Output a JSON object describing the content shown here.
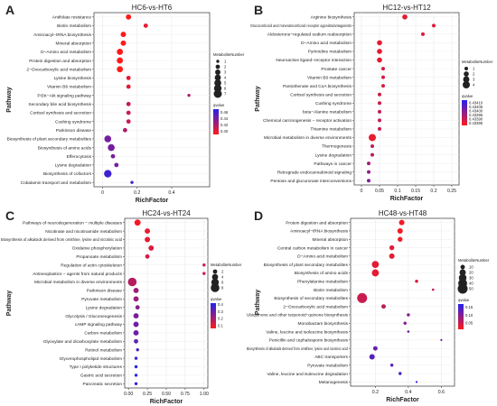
{
  "chart_data": [
    {
      "panel_letter": "A",
      "type": "scatter",
      "title": "HC6-vs-HT6",
      "xlabel": "RichFactor",
      "ylabel": "Pathway",
      "xlim": [
        -0.05,
        0.62
      ],
      "xticks": [
        0.0,
        0.2,
        0.4
      ],
      "size_legend": {
        "title": "MetaboliteNumber",
        "labels": [
          "1",
          "2",
          "3",
          "4",
          "5",
          "6",
          "7"
        ],
        "values": [
          1,
          2,
          3,
          4,
          5,
          6,
          7
        ]
      },
      "color_legend": {
        "title": "qvalue",
        "labels": [
          "0.46",
          "0.44",
          "0.42",
          "0.40"
        ],
        "values": [
          0.46,
          0.44,
          0.42,
          0.4
        ],
        "domain": [
          0.39,
          0.47
        ]
      },
      "colors": {
        "low": "#ff1a1a",
        "high": "#2222ee"
      },
      "categories": [
        "Antifolate resistance",
        "Biotin metabolism",
        "Aminoacyl−tRNA biosynthesis",
        "Mineral absorption",
        "D−Amino acid metabolism",
        "Protein digestion and absorption",
        "2−Oxocarboxylic acid metabolism",
        "Lysine biosynthesis",
        "Vitamin B6 metabolism",
        "PI3K−Akt signaling pathway",
        "Secondary bile acid biosynthesis",
        "Cortisol synthesis and secretion",
        "Cushing syndrome",
        "Parkinson disease",
        "Biosynthesis of plant secondary metabolites",
        "Biosynthesis of amino acids",
        "Efferocytosis",
        "Lysine degradation",
        "Biosynthesis of cofactors",
        "Cobalamin transport and metabolism"
      ],
      "x": [
        0.15,
        0.25,
        0.12,
        0.12,
        0.1,
        0.1,
        0.1,
        0.15,
        0.15,
        0.5,
        0.15,
        0.15,
        0.15,
        0.13,
        0.03,
        0.05,
        0.06,
        0.08,
        0.03,
        0.17
      ],
      "size": [
        3,
        2,
        3,
        3,
        4,
        4,
        4,
        2,
        2,
        1,
        2,
        2,
        2,
        2,
        5,
        5,
        2,
        2,
        6,
        1
      ],
      "q": [
        0.39,
        0.4,
        0.39,
        0.39,
        0.39,
        0.39,
        0.39,
        0.4,
        0.4,
        0.42,
        0.41,
        0.41,
        0.41,
        0.42,
        0.44,
        0.44,
        0.44,
        0.44,
        0.46,
        0.46
      ]
    },
    {
      "panel_letter": "B",
      "type": "scatter",
      "title": "HC12-vs-HT12",
      "xlabel": "RichFactor",
      "ylabel": "Pathway",
      "xlim": [
        -0.02,
        0.27
      ],
      "xticks": [
        0.0,
        0.05,
        0.1,
        0.15,
        0.2,
        0.25
      ],
      "size_legend": {
        "title": "MetaboliteNumber",
        "labels": [
          "1",
          "2",
          "3",
          "4"
        ],
        "values": [
          1,
          2,
          3,
          4
        ]
      },
      "color_legend": {
        "title": "qvalue",
        "labels": [
          "0.43410",
          "0.43405",
          "0.43400",
          "0.43395",
          "0.43390",
          "0.43385"
        ],
        "values": [
          0.4341,
          0.43405,
          0.434,
          0.43395,
          0.4339,
          0.43385
        ],
        "domain": [
          0.43382,
          0.43413
        ]
      },
      "colors": {
        "low": "#ff1a1a",
        "high": "#2222ee"
      },
      "categories": [
        "Arginine biosynthesis",
        "Glucocorticoid and mineralocorticoid receptor agonists/antagonists",
        "Aldosterone−regulated sodium reabsorption",
        "D−Amino acid metabolism",
        "Pyrimidine metabolism",
        "Neuroactive ligand−receptor interaction",
        "Prostate cancer",
        "Vitamin B6 metabolism",
        "Pantothenate and CoA biosynthesis",
        "Cortisol synthesis and secretion",
        "Cushing syndrome",
        "beta−Alanine metabolism",
        "Chemical carcinogenesis − receptor activation",
        "Thiamine metabolism",
        "Microbial metabolism in diverse environments",
        "Thermogenesis",
        "Lysine degradation",
        "Pathways in cancer",
        "Retrograde endocannabinoid signaling",
        "Pentose and glucuronate interconversions"
      ],
      "x": [
        0.12,
        0.2,
        0.17,
        0.05,
        0.05,
        0.05,
        0.06,
        0.06,
        0.06,
        0.05,
        0.05,
        0.05,
        0.05,
        0.05,
        0.03,
        0.03,
        0.03,
        0.02,
        0.02,
        0.02
      ],
      "size": [
        2,
        1,
        1,
        2,
        2,
        2,
        1,
        1,
        1,
        1,
        1,
        1,
        1,
        1,
        4,
        1,
        1,
        1,
        1,
        1
      ],
      "q": [
        0.43386,
        0.43387,
        0.43387,
        0.43386,
        0.43386,
        0.43386,
        0.43388,
        0.43388,
        0.43388,
        0.43389,
        0.43389,
        0.4339,
        0.4339,
        0.4339,
        0.43385,
        0.43392,
        0.43392,
        0.43395,
        0.43398,
        0.434
      ]
    },
    {
      "panel_letter": "C",
      "type": "scatter",
      "title": "HC24-vs-HT24",
      "xlabel": "RichFactor",
      "ylabel": "Pathway",
      "xlim": [
        -0.05,
        1.05
      ],
      "xticks": [
        0.0,
        0.25,
        0.5,
        0.75,
        1.0
      ],
      "xtick_labels": [
        "0.00",
        "0.25",
        "0.50",
        "0.75",
        "1.00"
      ],
      "size_legend": {
        "title": "MetaboliteNumber",
        "labels": [
          "2",
          "4",
          "6",
          "8"
        ],
        "values": [
          2,
          4,
          6,
          8
        ]
      },
      "color_legend": {
        "title": "qvalue",
        "labels": [
          "0.4",
          "0.3",
          "0.2",
          "0.1"
        ],
        "values": [
          0.4,
          0.3,
          0.2,
          0.1
        ],
        "domain": [
          0.06,
          0.42
        ]
      },
      "colors": {
        "low": "#ff1a1a",
        "high": "#2222ee"
      },
      "categories": [
        "Pathways of neurodegeneration − multiple diseases",
        "Nicotinate and nicotinamide metabolism",
        "Biosynthesis of alkaloids derived from ornithine, lysine and nicotinic acid",
        "Oxidative phosphorylation",
        "Propanoate metabolism",
        "Regulation of actin cytoskeleton",
        "Antineoplastics − agents from natural products",
        "Microbial metabolism in diverse environments",
        "Parkinson disease",
        "Pyruvate metabolism",
        "Lysine degradation",
        "Glycolysis / Gluconeogenesis",
        "cAMP signaling pathway",
        "Carbon metabolism",
        "Glyoxylate and dicarboxylate metabolism",
        "Retinol metabolism",
        "Glycerophospholipid metabolism",
        "Type I polyketide structures",
        "Gastric acid secretion",
        "Pancreatic secretion"
      ],
      "x": [
        0.12,
        0.25,
        0.25,
        0.3,
        0.25,
        1.0,
        1.0,
        0.05,
        0.1,
        0.1,
        0.12,
        0.1,
        0.1,
        0.1,
        0.1,
        0.12,
        0.1,
        0.1,
        0.1,
        0.1
      ],
      "size": [
        4,
        3,
        3,
        3,
        2,
        1,
        1,
        8,
        3,
        3,
        2,
        3,
        3,
        3,
        2,
        1,
        1,
        1,
        1,
        1
      ],
      "q": [
        0.08,
        0.1,
        0.1,
        0.12,
        0.13,
        0.15,
        0.15,
        0.18,
        0.22,
        0.22,
        0.25,
        0.28,
        0.3,
        0.3,
        0.32,
        0.35,
        0.38,
        0.4,
        0.4,
        0.4
      ]
    },
    {
      "panel_letter": "D",
      "type": "scatter",
      "title": "HC48-vs-HT48",
      "xlabel": "RichFactor",
      "ylabel": "Pathway",
      "xlim": [
        0.05,
        0.68
      ],
      "xticks": [
        0.2,
        0.4,
        0.6
      ],
      "size_legend": {
        "title": "MetaboliteNumber",
        "labels": [
          "10",
          "20",
          "30",
          "40",
          "50"
        ],
        "values": [
          10,
          20,
          30,
          40,
          50
        ]
      },
      "color_legend": {
        "title": "qvalue",
        "labels": [
          "0.15",
          "0.10",
          "0.05"
        ],
        "values": [
          0.15,
          0.1,
          0.05
        ],
        "domain": [
          0.01,
          0.17
        ]
      },
      "colors": {
        "low": "#ff1a1a",
        "high": "#2222ee"
      },
      "categories": [
        "Protein digestion and absorption",
        "Aminoacyl−tRNA biosynthesis",
        "Mineral absorption",
        "Central carbon metabolism in cancer",
        "D−Amino acid metabolism",
        "Biosynthesis of plant secondary metabolites",
        "Biosynthesis of amino acids",
        "Phenylalanine metabolism",
        "Biotin metabolism",
        "Biosynthesis of secondary metabolites",
        "2−Oxocarboxylic acid metabolism",
        "Ubiquinone and other terpenoid−quinone biosynthesis",
        "Monobactam biosynthesis",
        "Valine, leucine and isoleucine biosynthesis",
        "Penicillin and cephalosporin biosynthesis",
        "Biosynthesis of alkaloids derived from ornithine, lysine and nicotinic acid",
        "ABC transporters",
        "Pyruvate metabolism",
        "Valine, leucine and isoleucine degradation",
        "Melanogenesis"
      ],
      "x": [
        0.36,
        0.35,
        0.35,
        0.3,
        0.3,
        0.2,
        0.2,
        0.45,
        0.55,
        0.12,
        0.25,
        0.4,
        0.38,
        0.4,
        0.6,
        0.2,
        0.18,
        0.3,
        0.35,
        0.45
      ],
      "size": [
        15,
        15,
        12,
        12,
        15,
        25,
        25,
        5,
        3,
        50,
        10,
        5,
        5,
        3,
        2,
        10,
        15,
        5,
        5,
        2
      ],
      "q": [
        0.02,
        0.02,
        0.02,
        0.03,
        0.03,
        0.03,
        0.03,
        0.04,
        0.05,
        0.05,
        0.06,
        0.1,
        0.1,
        0.11,
        0.12,
        0.12,
        0.13,
        0.13,
        0.14,
        0.16
      ]
    }
  ]
}
